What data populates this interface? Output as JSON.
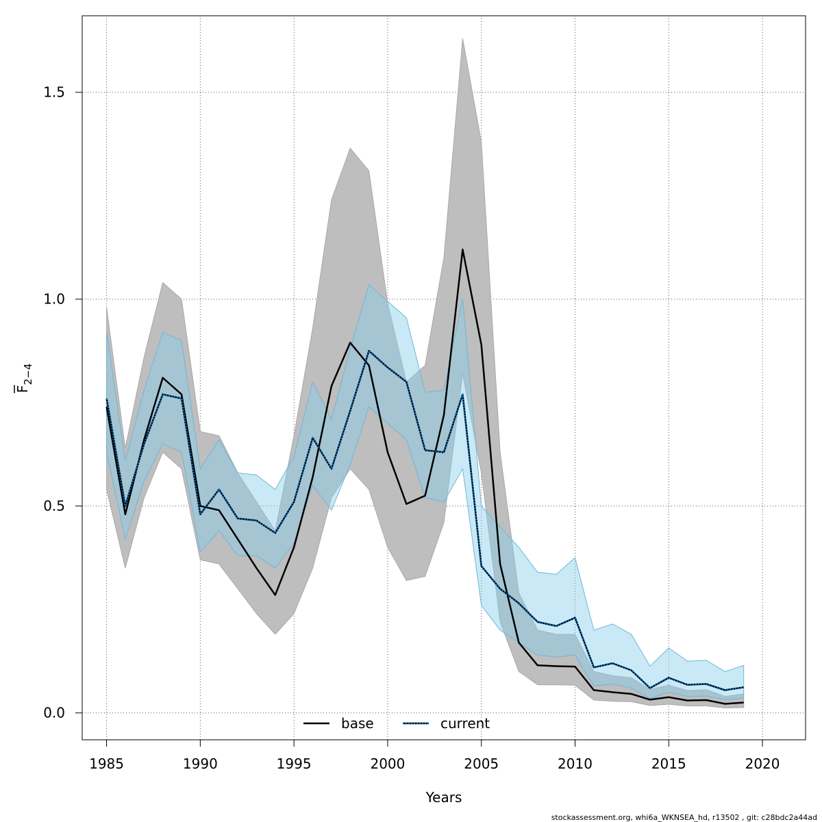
{
  "chart_data": {
    "type": "line",
    "xlabel": "Years",
    "ylabel_main": "F",
    "ylabel_sub": "2−4",
    "xlim": [
      1983.7,
      2022.3
    ],
    "ylim": [
      -0.065,
      1.685
    ],
    "x_ticks": [
      1985,
      1990,
      1995,
      2000,
      2005,
      2010,
      2015,
      2020
    ],
    "y_ticks": [
      0.0,
      0.5,
      1.0,
      1.5
    ],
    "y_tick_labels": [
      "0.0",
      "0.5",
      "1.0",
      "1.5"
    ],
    "grid": true,
    "legend_position": "bottom-center",
    "years": [
      1985,
      1986,
      1987,
      1988,
      1989,
      1990,
      1991,
      1992,
      1993,
      1994,
      1995,
      1996,
      1997,
      1998,
      1999,
      2000,
      2001,
      2002,
      2003,
      2004,
      2005,
      2006,
      2007,
      2008,
      2009,
      2010,
      2011,
      2012,
      2013,
      2014,
      2015,
      2016,
      2017,
      2018,
      2019
    ],
    "series": [
      {
        "name": "base",
        "color": "#000000",
        "band_color": "#bebebe",
        "line_style": "solid",
        "values": [
          0.74,
          0.48,
          0.66,
          0.81,
          0.77,
          0.5,
          0.49,
          0.42,
          0.35,
          0.285,
          0.4,
          0.57,
          0.79,
          0.895,
          0.84,
          0.63,
          0.505,
          0.525,
          0.72,
          1.12,
          0.89,
          0.36,
          0.17,
          0.115,
          0.113,
          0.112,
          0.055,
          0.05,
          0.046,
          0.032,
          0.038,
          0.03,
          0.031,
          0.022,
          0.025
        ],
        "lower": [
          0.54,
          0.35,
          0.52,
          0.63,
          0.59,
          0.37,
          0.36,
          0.3,
          0.24,
          0.19,
          0.24,
          0.35,
          0.52,
          0.59,
          0.54,
          0.4,
          0.32,
          0.33,
          0.46,
          0.82,
          0.58,
          0.22,
          0.1,
          0.068,
          0.068,
          0.067,
          0.031,
          0.028,
          0.027,
          0.018,
          0.021,
          0.017,
          0.017,
          0.012,
          0.013
        ],
        "upper": [
          0.98,
          0.64,
          0.86,
          1.04,
          1.0,
          0.68,
          0.67,
          0.58,
          0.51,
          0.44,
          0.67,
          0.93,
          1.24,
          1.365,
          1.31,
          0.99,
          0.8,
          0.84,
          1.1,
          1.63,
          1.38,
          0.63,
          0.29,
          0.2,
          0.19,
          0.19,
          0.1,
          0.09,
          0.085,
          0.057,
          0.067,
          0.054,
          0.056,
          0.04,
          0.046
        ]
      },
      {
        "name": "current",
        "color": "#000000",
        "dot_color": "#0070c0",
        "band_color": "#87ceeb",
        "line_style": "dotted",
        "values": [
          0.76,
          0.5,
          0.65,
          0.77,
          0.76,
          0.48,
          0.54,
          0.47,
          0.465,
          0.435,
          0.51,
          0.665,
          0.59,
          0.73,
          0.875,
          0.835,
          0.8,
          0.635,
          0.63,
          0.77,
          0.355,
          0.3,
          0.265,
          0.22,
          0.21,
          0.23,
          0.11,
          0.12,
          0.103,
          0.06,
          0.085,
          0.068,
          0.07,
          0.055,
          0.062
        ],
        "lower": [
          0.63,
          0.42,
          0.56,
          0.65,
          0.63,
          0.39,
          0.44,
          0.38,
          0.38,
          0.35,
          0.41,
          0.55,
          0.49,
          0.6,
          0.74,
          0.7,
          0.66,
          0.52,
          0.51,
          0.59,
          0.26,
          0.2,
          0.17,
          0.14,
          0.135,
          0.14,
          0.065,
          0.07,
          0.06,
          0.035,
          0.05,
          0.04,
          0.041,
          0.032,
          0.036
        ],
        "upper": [
          0.92,
          0.61,
          0.78,
          0.92,
          0.9,
          0.59,
          0.66,
          0.58,
          0.575,
          0.54,
          0.62,
          0.8,
          0.71,
          0.88,
          1.035,
          0.995,
          0.955,
          0.775,
          0.78,
          1.0,
          0.5,
          0.45,
          0.4,
          0.34,
          0.335,
          0.375,
          0.2,
          0.215,
          0.19,
          0.113,
          0.157,
          0.125,
          0.127,
          0.1,
          0.115
        ]
      }
    ]
  },
  "legend": {
    "items": [
      {
        "label": "base"
      },
      {
        "label": "current"
      }
    ]
  },
  "footer": {
    "text": "stockassessment.org, whi6a_WKNSEA_hd, r13502 , git: c28bdc2a44ad"
  }
}
